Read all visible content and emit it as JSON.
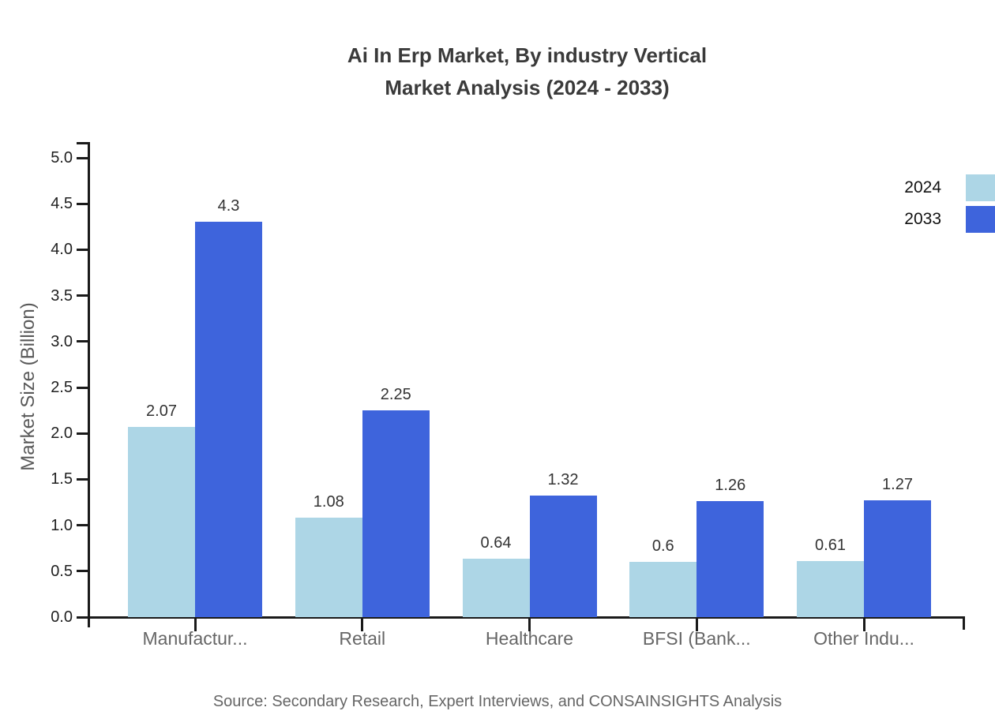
{
  "title": {
    "line1": "Ai In Erp Market, By industry Vertical",
    "line2": "Market Analysis (2024 - 2033)"
  },
  "source": "Source: Secondary Research, Expert Interviews, and CONSAINSIGHTS Analysis",
  "chart_data": {
    "type": "bar",
    "title": "Ai In Erp Market, By industry Vertical Market Analysis (2024 - 2033)",
    "categories": [
      "Manufactur...",
      "Retail",
      "Healthcare",
      "BFSI (Bank...",
      "Other Indu..."
    ],
    "series": [
      {
        "name": "2024",
        "color": "#ADD6E6",
        "values": [
          2.07,
          1.08,
          0.64,
          0.6,
          0.61
        ]
      },
      {
        "name": "2033",
        "color": "#3E64DC",
        "values": [
          4.3,
          2.25,
          1.32,
          1.26,
          1.27
        ]
      }
    ],
    "xlabel": "",
    "ylabel": "Market Size (Billion)",
    "ylim": [
      0,
      5
    ],
    "ytick_step": 0.5,
    "ytick_labels": [
      "0.0",
      "0.5",
      "1.0",
      "1.5",
      "2.0",
      "2.5",
      "3.0",
      "3.5",
      "4.0",
      "4.5",
      "5.0"
    ],
    "value_labels": {
      "2024": [
        "2.07",
        "1.08",
        "0.64",
        "0.6",
        "0.61"
      ],
      "2033": [
        "4.3",
        "2.25",
        "1.32",
        "1.26",
        "1.27"
      ]
    },
    "grid": false,
    "legend_position": "top-right",
    "axis_color": "#1a1a1a"
  }
}
